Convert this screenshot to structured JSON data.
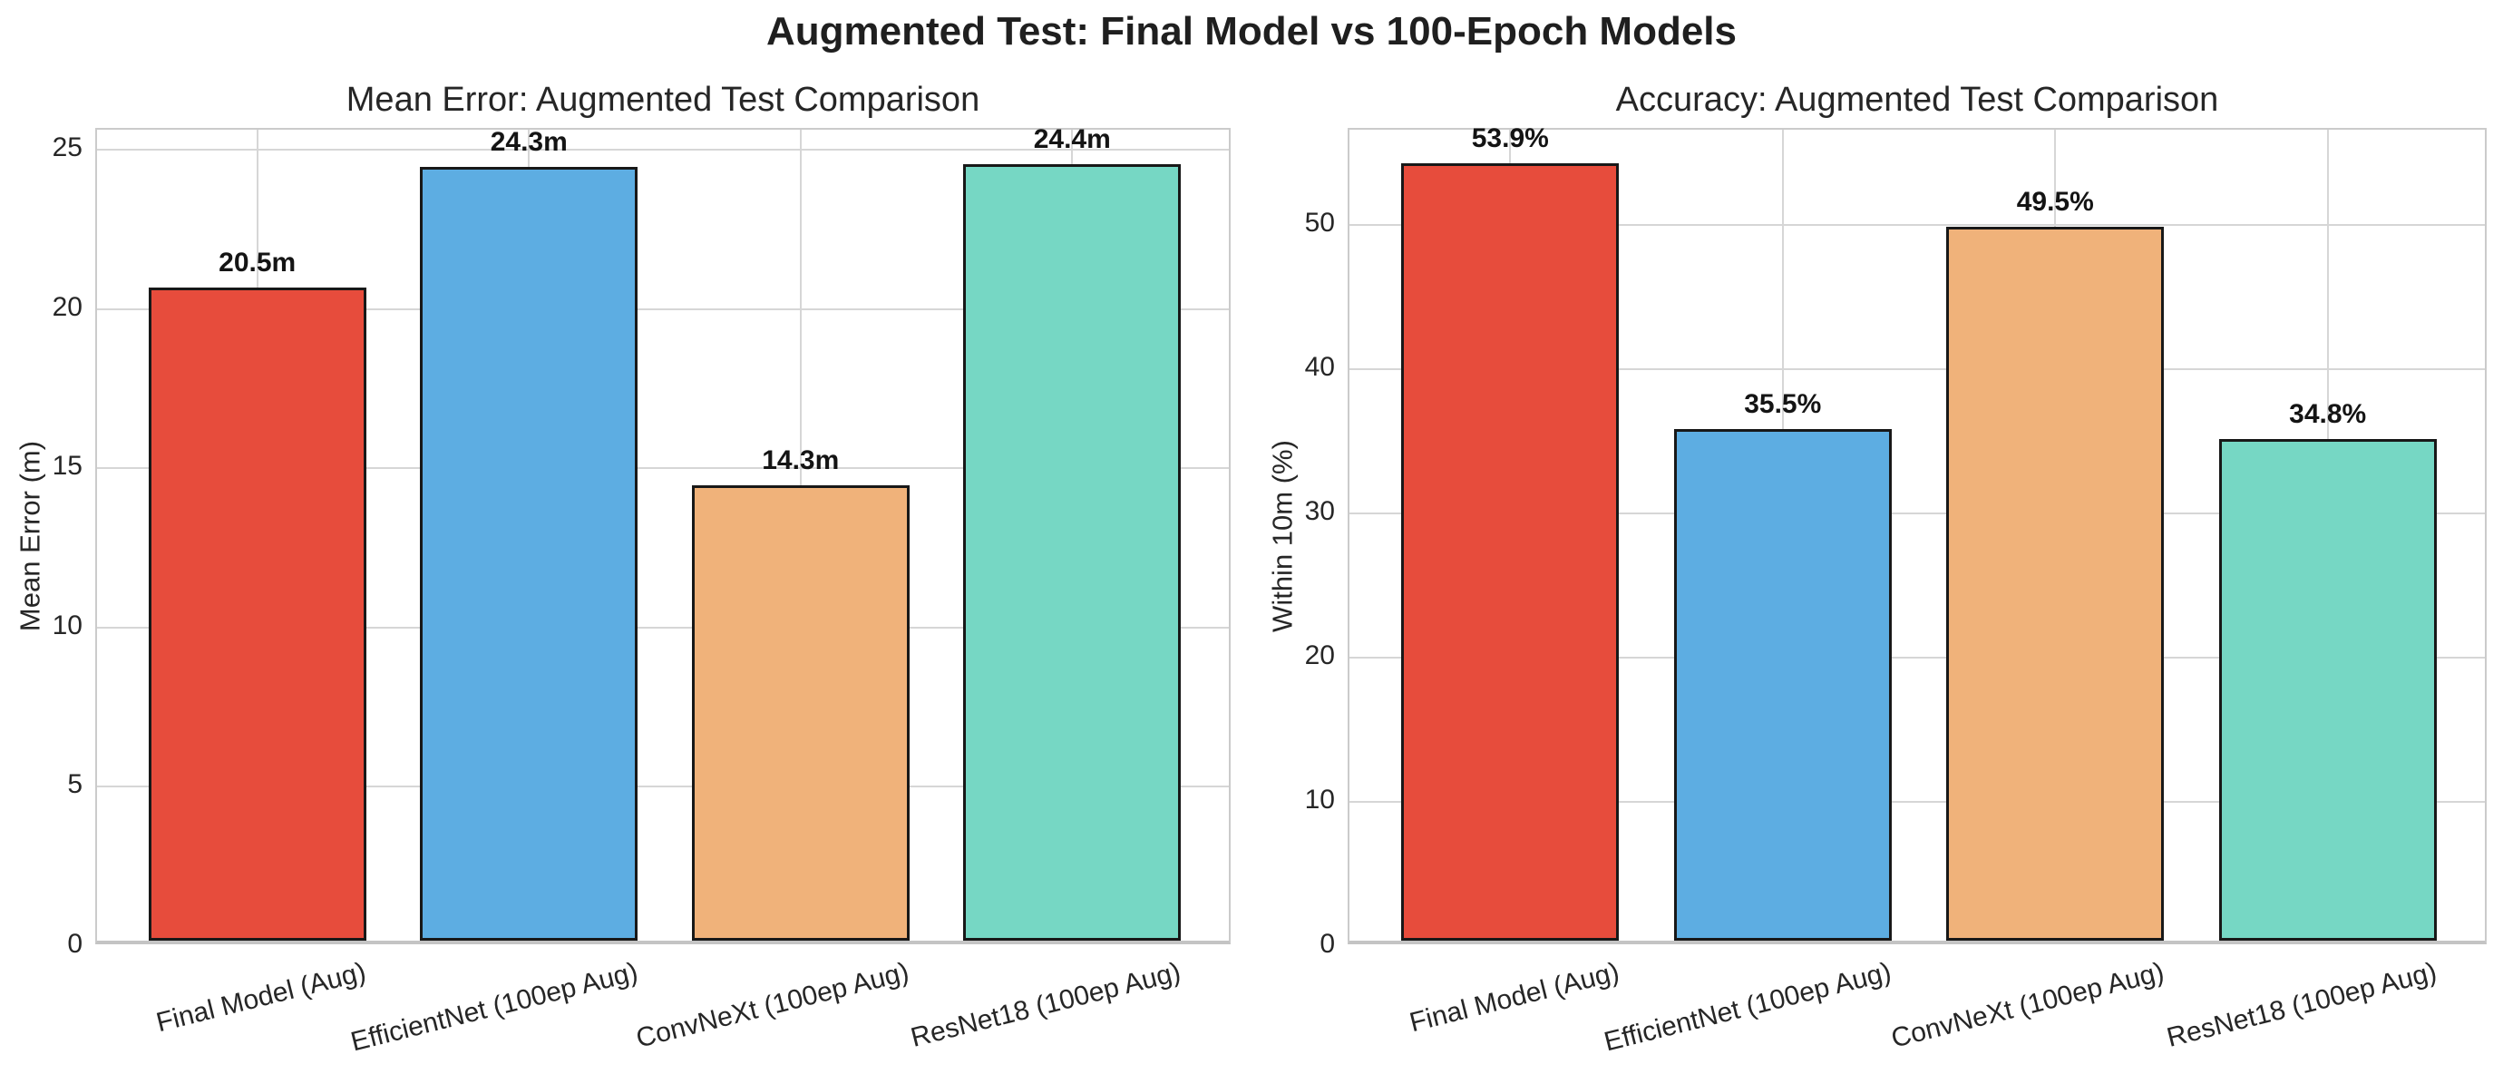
{
  "figure": {
    "title": "Augmented Test: Final Model vs 100-Epoch Models",
    "background_color": "#ffffff",
    "text_color": "#262626",
    "grid_color": "#d6d6d6",
    "spine_color": "#cbcbcb",
    "bar_edge_color": "#181818"
  },
  "chart_data": [
    {
      "type": "bar",
      "title": "Mean Error: Augmented Test Comparison",
      "xlabel": "",
      "ylabel": "Mean Error (m)",
      "categories": [
        "Final Model (Aug)",
        "EfficientNet (100ep Aug)",
        "ConvNeXt (100ep Aug)",
        "ResNet18 (100ep Aug)"
      ],
      "values": [
        20.5,
        24.3,
        14.3,
        24.4
      ],
      "value_labels": [
        "20.5m",
        "24.3m",
        "14.3m",
        "24.4m"
      ],
      "bar_colors": [
        "#e74c3c",
        "#5dade2",
        "#f0b27a",
        "#76d7c4"
      ],
      "yticks": [
        0,
        5,
        10,
        15,
        20,
        25
      ],
      "ylim": [
        0,
        25.64
      ],
      "grid": true,
      "legend": false
    },
    {
      "type": "bar",
      "title": "Accuracy: Augmented Test Comparison",
      "xlabel": "",
      "ylabel": "Within 10m (%)",
      "categories": [
        "Final Model (Aug)",
        "EfficientNet (100ep Aug)",
        "ConvNeXt (100ep Aug)",
        "ResNet18 (100ep Aug)"
      ],
      "values": [
        53.9,
        35.5,
        49.5,
        34.8
      ],
      "value_labels": [
        "53.9%",
        "35.5%",
        "49.5%",
        "34.8%"
      ],
      "bar_colors": [
        "#e74c3c",
        "#5dade2",
        "#f0b27a",
        "#76d7c4"
      ],
      "yticks": [
        0,
        10,
        20,
        30,
        40,
        50
      ],
      "ylim": [
        0,
        56.6
      ],
      "grid": true,
      "legend": false
    }
  ]
}
